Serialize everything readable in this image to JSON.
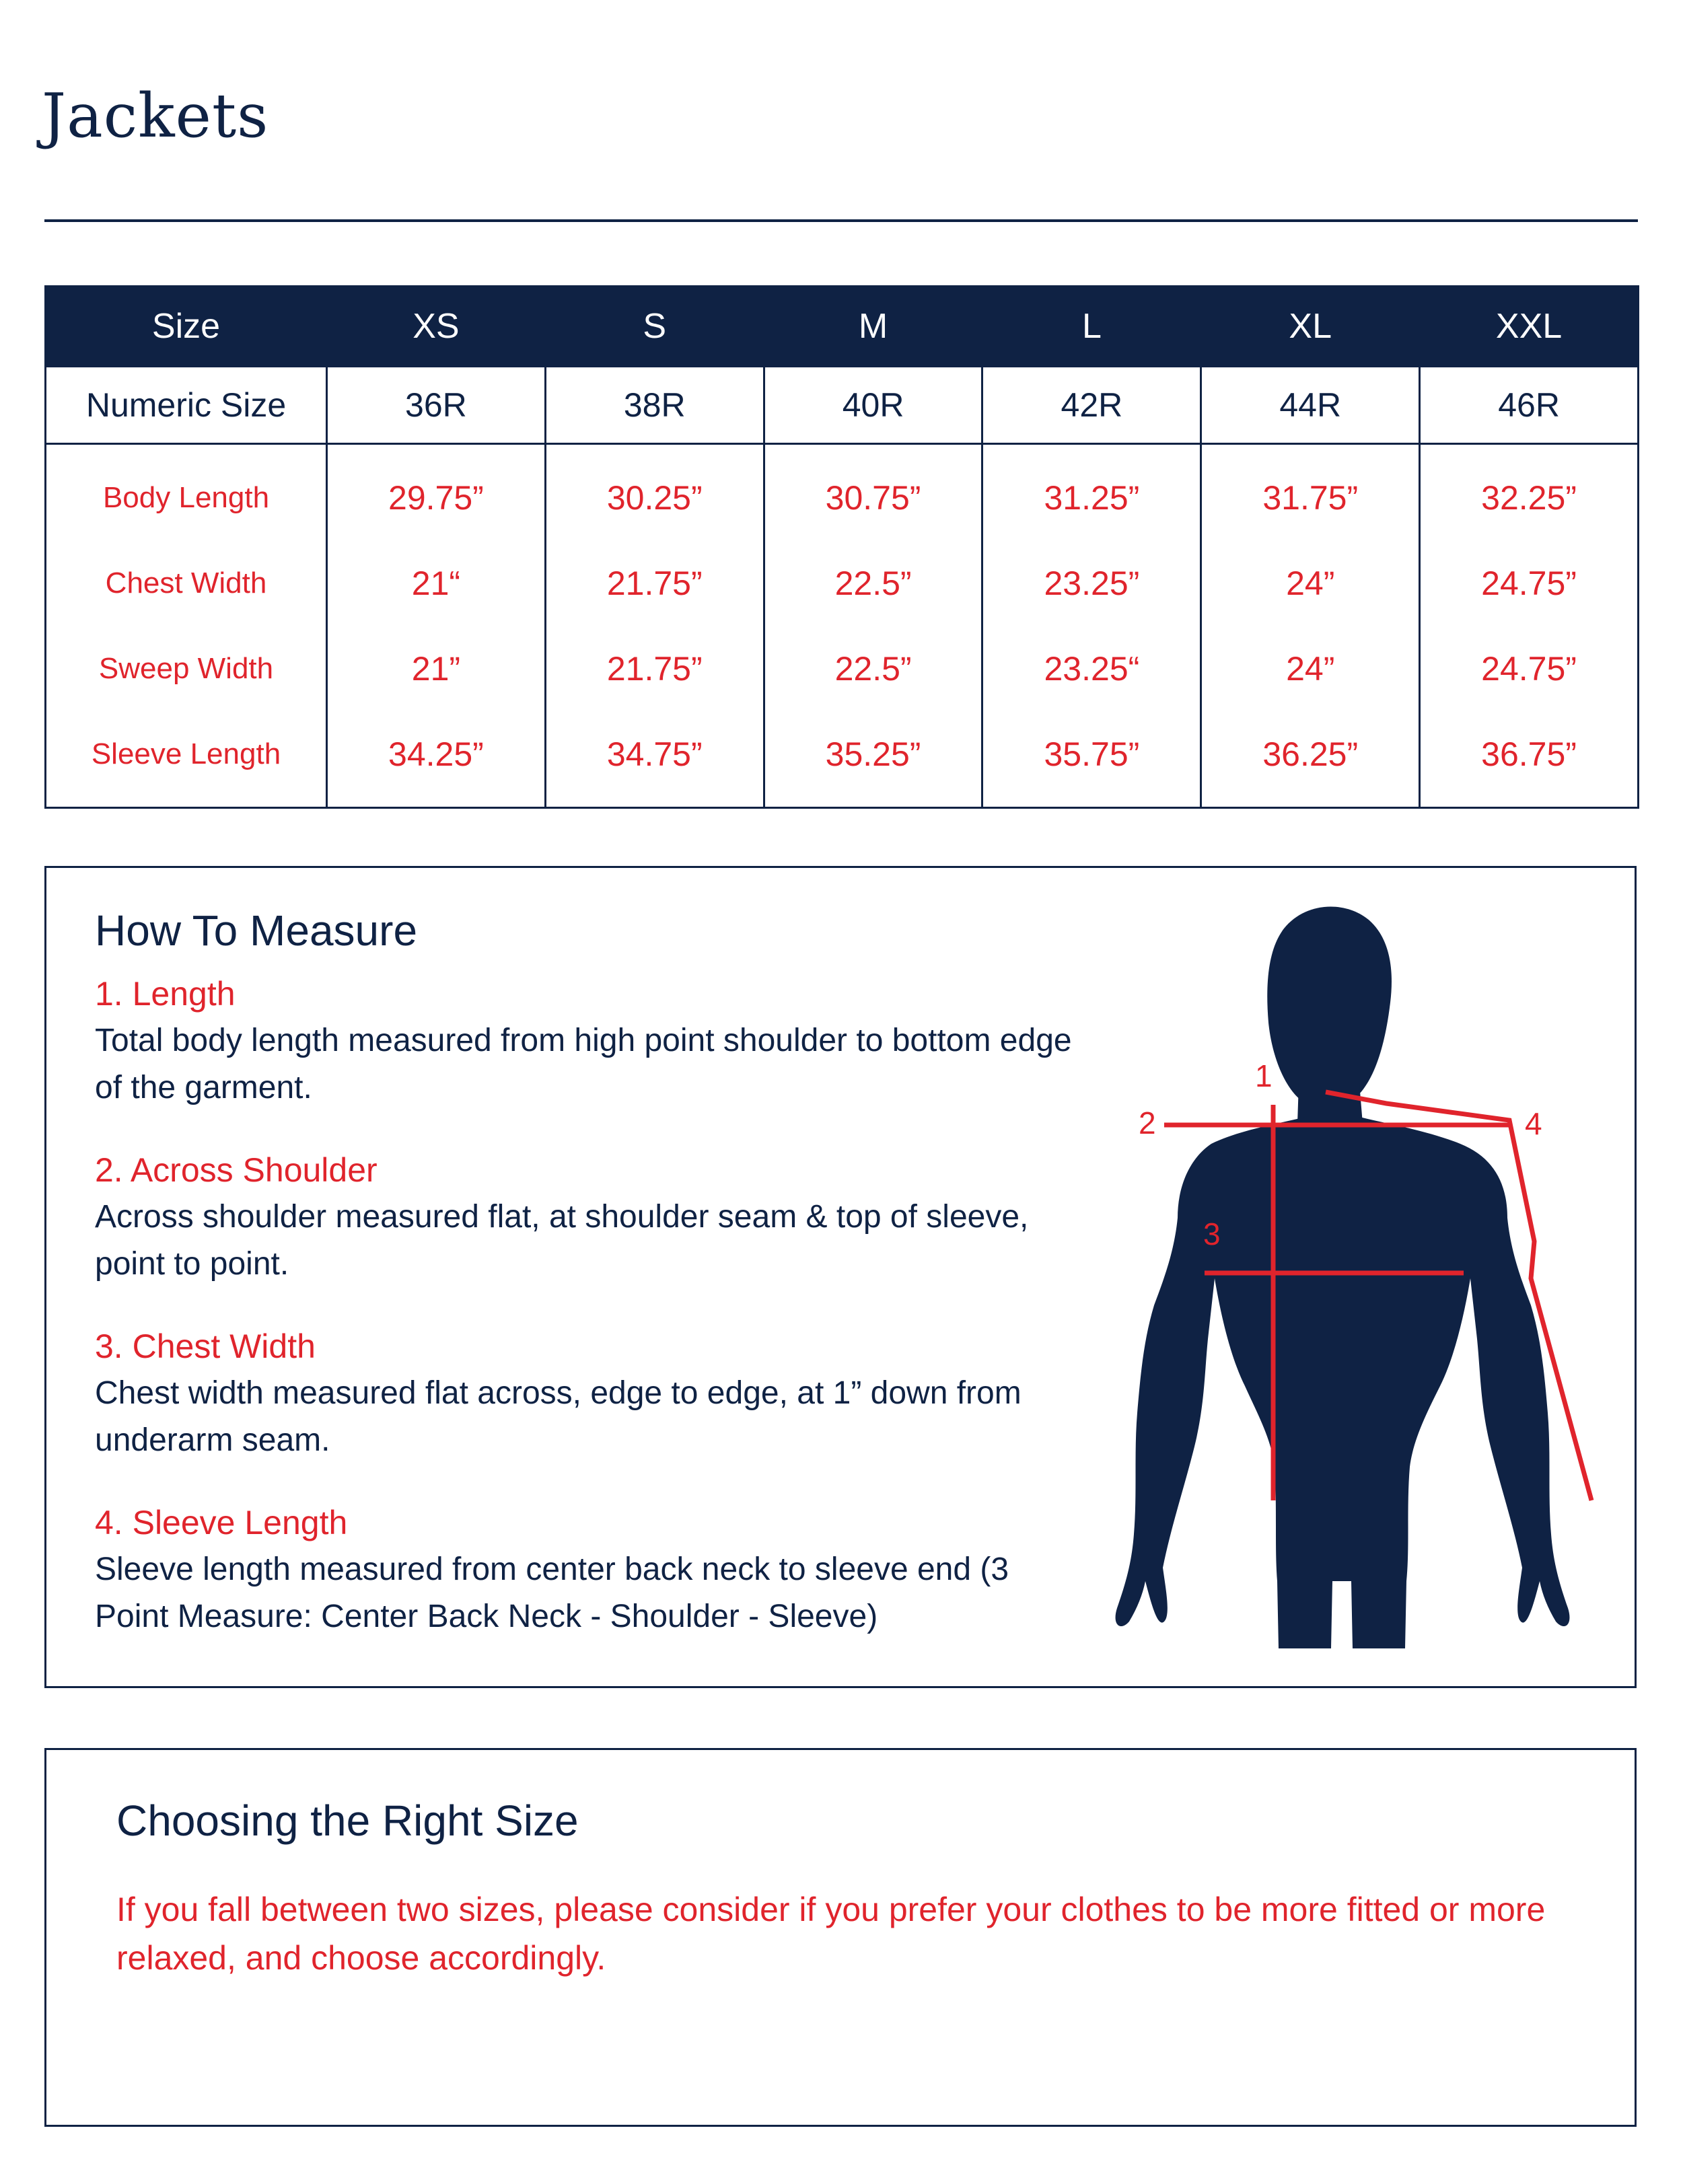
{
  "page": {
    "title": "Jackets"
  },
  "size_table": {
    "header": [
      "Size",
      "XS",
      "S",
      "M",
      "L",
      "XL",
      "XXL"
    ],
    "numeric": {
      "label": "Numeric Size",
      "values": [
        "36R",
        "38R",
        "40R",
        "42R",
        "44R",
        "46R"
      ]
    },
    "rows": [
      {
        "label": "Body Length",
        "values": [
          "29.75”",
          "30.25”",
          "30.75”",
          "31.25”",
          "31.75”",
          "32.25”"
        ]
      },
      {
        "label": "Chest Width",
        "values": [
          "21“",
          "21.75”",
          "22.5”",
          "23.25”",
          "24”",
          "24.75”"
        ]
      },
      {
        "label": "Sweep Width",
        "values": [
          "21”",
          "21.75”",
          "22.5”",
          "23.25“",
          "24”",
          "24.75”"
        ]
      },
      {
        "label": "Sleeve Length",
        "values": [
          "34.25”",
          "34.75”",
          "35.25”",
          "35.75”",
          "36.25”",
          "36.75”"
        ]
      }
    ]
  },
  "how_to_measure": {
    "title": "How To Measure",
    "steps": [
      {
        "title": "1. Length",
        "desc": "Total body length measured from high point shoulder to bottom edge of the garment."
      },
      {
        "title": "2. Across Shoulder",
        "desc": "Across shoulder measured flat, at shoulder seam & top of sleeve, point to point."
      },
      {
        "title": "3. Chest Width",
        "desc": "Chest width measured flat across, edge to edge, at 1” down from underarm seam."
      },
      {
        "title": "4. Sleeve Length",
        "desc": "Sleeve length measured from center back neck to sleeve end (3 Point Measure: Center Back Neck - Shoulder - Sleeve)"
      }
    ],
    "figure": {
      "labels": [
        "1",
        "2",
        "3",
        "4"
      ],
      "silhouette_color": "#0f2244",
      "line_color": "#e0242c"
    }
  },
  "choosing": {
    "title": "Choosing the Right Size",
    "text": "If you fall between two sizes, please consider if you prefer your clothes to be more fitted or more relaxed, and choose accordingly."
  }
}
